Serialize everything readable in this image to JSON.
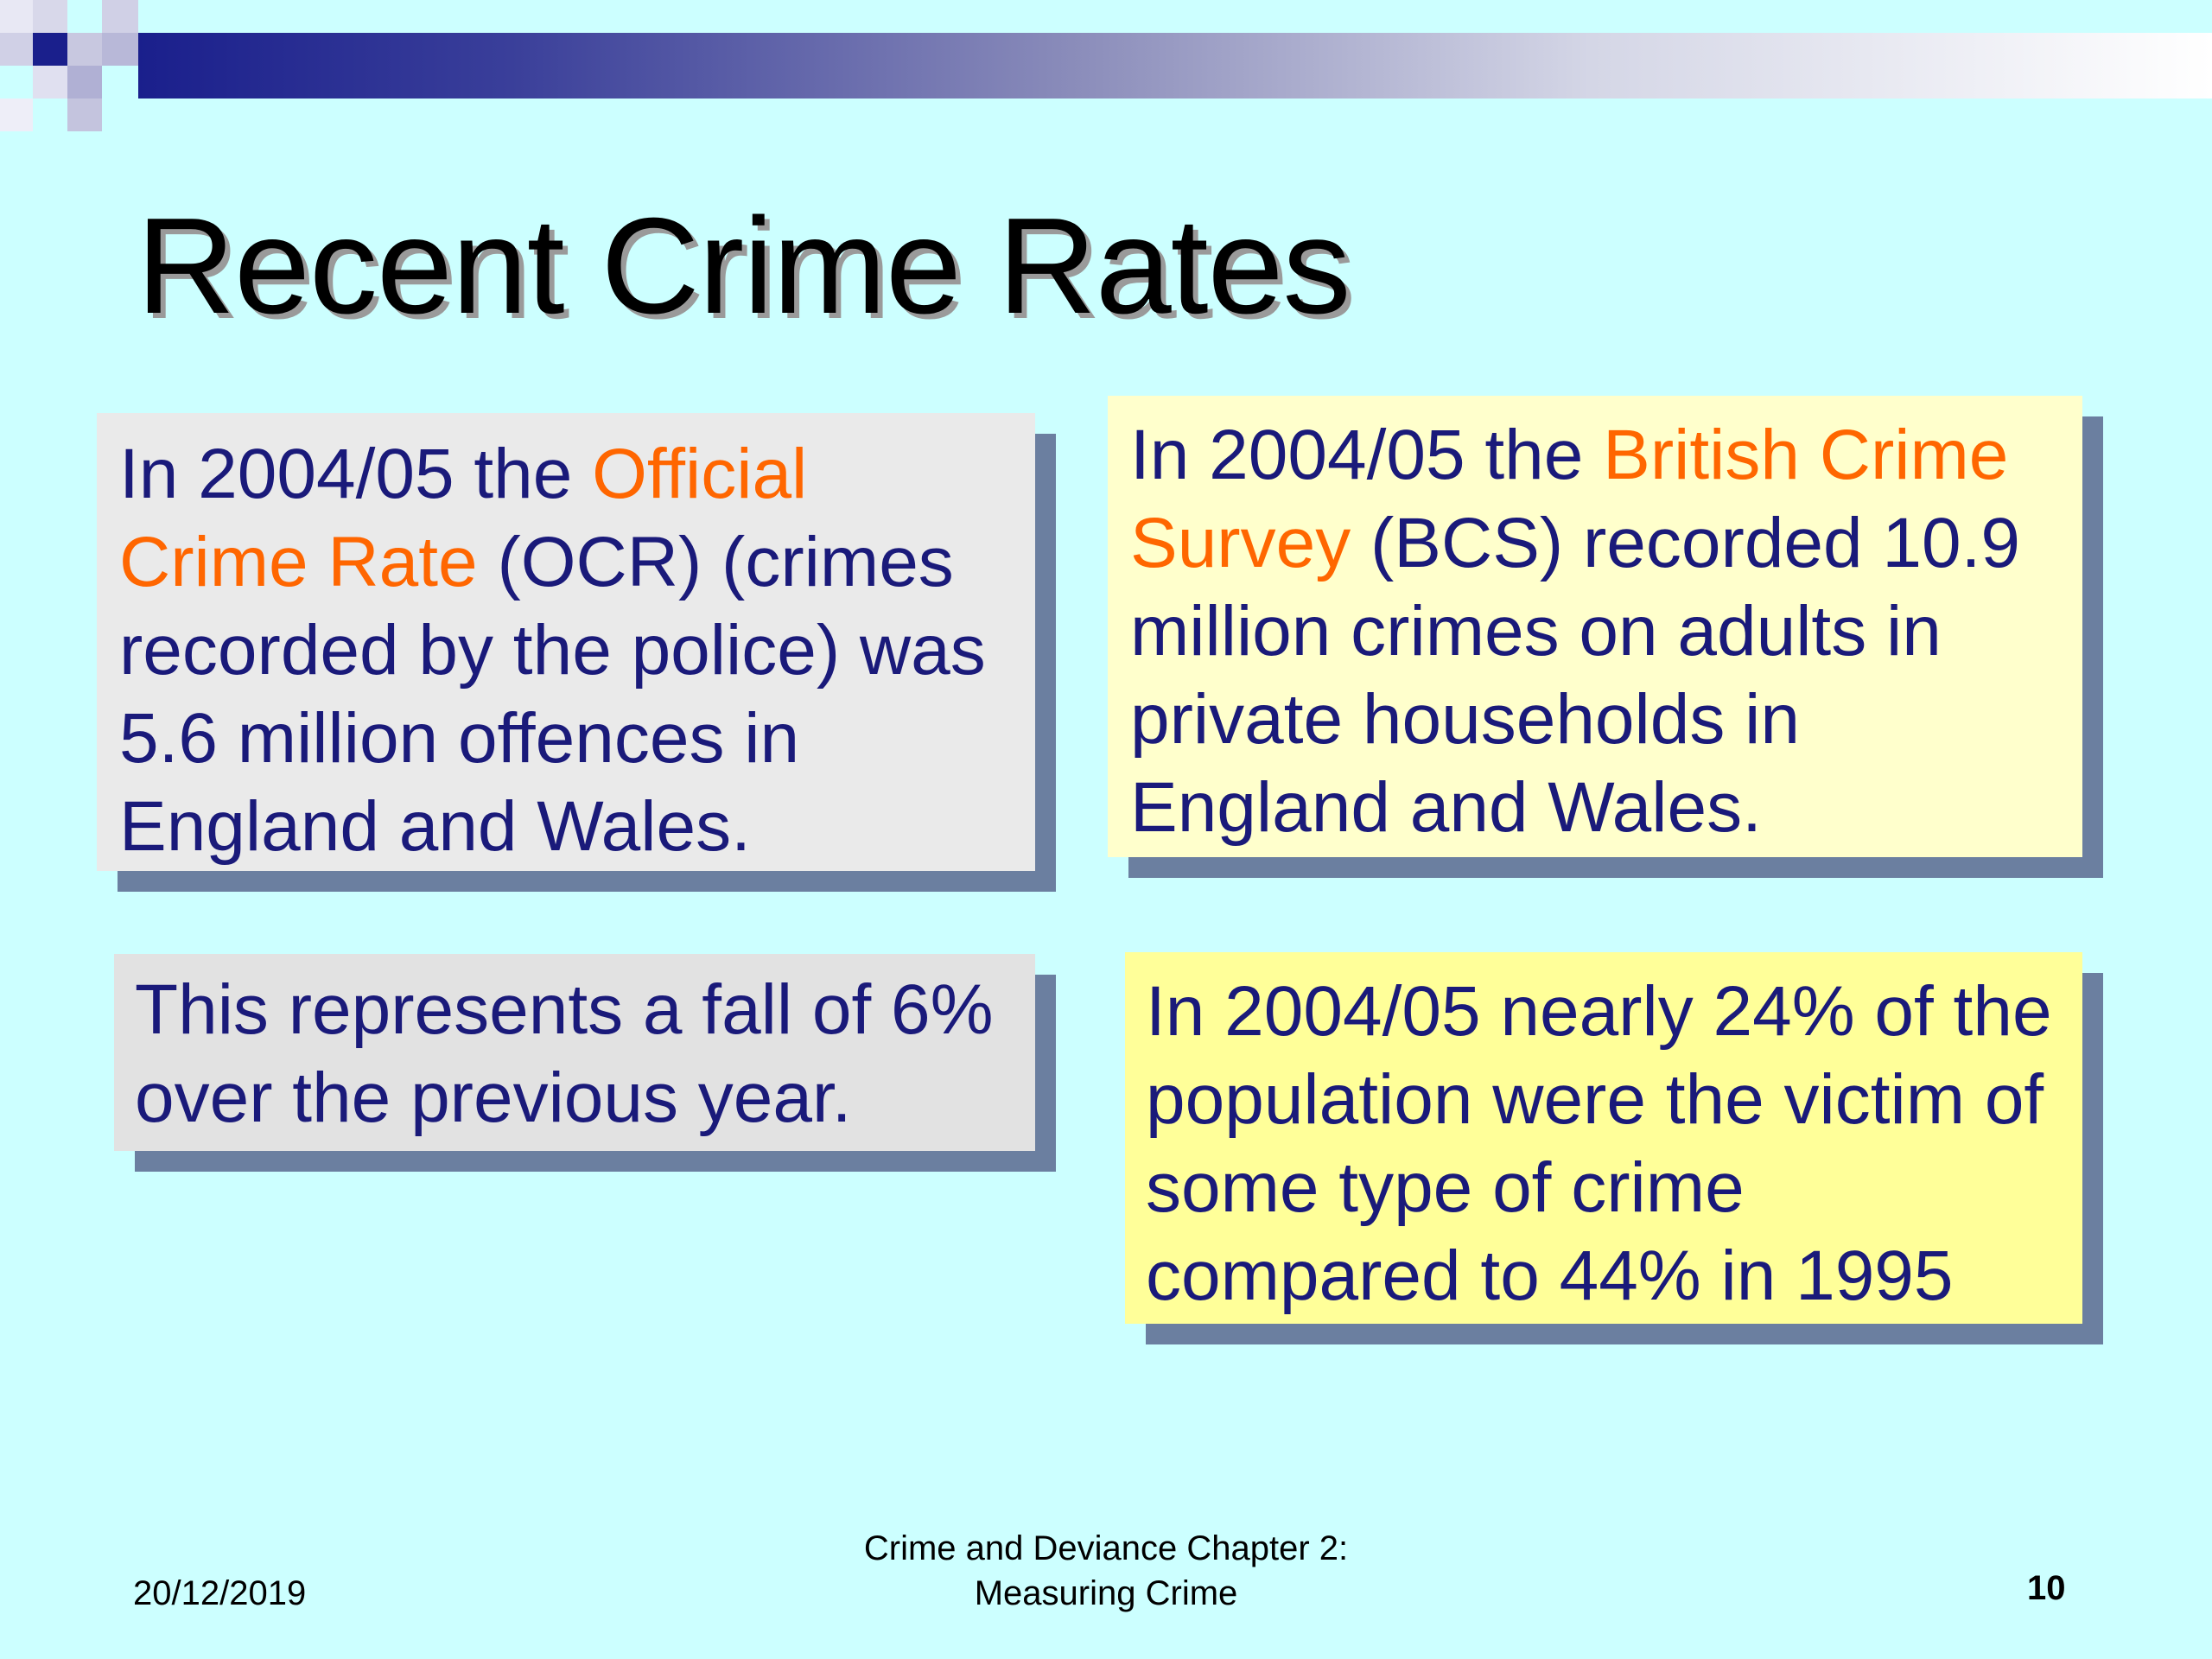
{
  "title": "Recent Crime Rates",
  "colors": {
    "background": "#ccffff",
    "text": "#1a1a7a",
    "highlight": "#ff6600",
    "shadow": "#6b7fa0"
  },
  "boxes": {
    "ocr": {
      "pre": "In 2004/05 the ",
      "highlight": "Official Crime Rate",
      "post": " (OCR) (crimes recorded by the police) was 5.6 million offences in England and Wales."
    },
    "bcs": {
      "pre": "In 2004/05 the ",
      "highlight": "British Crime Survey",
      "post": " (BCS) recorded 10.9 million crimes on adults in private households in England and Wales."
    },
    "fall": {
      "text": "This represents a fall of 6% over the previous year."
    },
    "victim": {
      "text": "In 2004/05 nearly 24% of the population were the victim of some type of crime compared to 44% in 1995"
    }
  },
  "footer": {
    "date": "20/12/2019",
    "center_line1": "Crime and Deviance Chapter 2:",
    "center_line2": "Measuring Crime",
    "page_number": "10"
  }
}
